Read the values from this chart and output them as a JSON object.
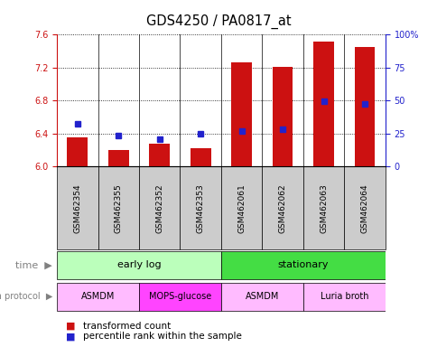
{
  "title": "GDS4250 / PA0817_at",
  "samples": [
    "GSM462354",
    "GSM462355",
    "GSM462352",
    "GSM462353",
    "GSM462061",
    "GSM462062",
    "GSM462063",
    "GSM462064"
  ],
  "red_values": [
    6.35,
    6.2,
    6.28,
    6.22,
    7.26,
    7.21,
    7.52,
    7.45
  ],
  "blue_values": [
    6.52,
    6.38,
    6.33,
    6.4,
    6.43,
    6.45,
    6.79,
    6.76
  ],
  "ylim_left": [
    6.0,
    7.6
  ],
  "ylim_right": [
    0,
    100
  ],
  "yticks_left": [
    6.0,
    6.4,
    6.8,
    7.2,
    7.6
  ],
  "yticks_right": [
    0,
    25,
    50,
    75,
    100
  ],
  "ytick_labels_right": [
    "0",
    "25",
    "50",
    "75",
    "100%"
  ],
  "bar_color": "#cc1111",
  "dot_color": "#2222cc",
  "bar_width": 0.5,
  "time_groups": [
    {
      "label": "early log",
      "start": 0,
      "end": 4,
      "color": "#bbffbb"
    },
    {
      "label": "stationary",
      "start": 4,
      "end": 8,
      "color": "#44dd44"
    }
  ],
  "protocol_groups": [
    {
      "label": "ASMDM",
      "start": 0,
      "end": 2,
      "color": "#ffbbff"
    },
    {
      "label": "MOPS-glucose",
      "start": 2,
      "end": 4,
      "color": "#ff44ff"
    },
    {
      "label": "ASMDM",
      "start": 4,
      "end": 6,
      "color": "#ffbbff"
    },
    {
      "label": "Luria broth",
      "start": 6,
      "end": 8,
      "color": "#ffbbff"
    }
  ],
  "sample_bg_color": "#cccccc",
  "background_color": "#ffffff",
  "left_tick_color": "#cc1111",
  "right_tick_color": "#2222cc",
  "time_label": "time",
  "protocol_label": "growth protocol",
  "legend_red": "transformed count",
  "legend_blue": "percentile rank within the sample",
  "arrow_color": "#aaaaaa"
}
